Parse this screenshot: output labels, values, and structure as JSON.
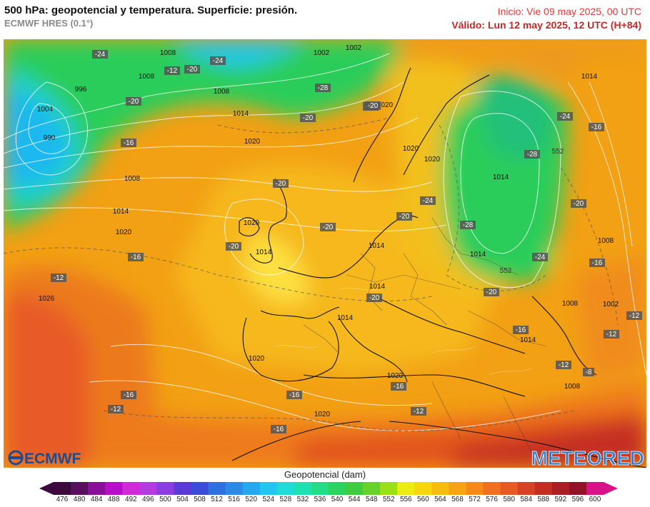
{
  "header": {
    "title": "500 hPa: geopotencial y temperatura. Superficie: presión.",
    "model": "ECMWF HRES (0.1°)",
    "init": "Inicio: Vie 09 may 2025, 00 UTC",
    "valid": "Válido: Lun 12 may 2025, 12 UTC (H+84)"
  },
  "logos": {
    "left": "ECMWF",
    "right": "METEORED"
  },
  "legend": {
    "title": "Geopotencial (dam)",
    "ticks": [
      "476",
      "480",
      "484",
      "488",
      "492",
      "496",
      "500",
      "504",
      "508",
      "512",
      "516",
      "520",
      "524",
      "528",
      "532",
      "536",
      "540",
      "544",
      "548",
      "552",
      "556",
      "560",
      "564",
      "568",
      "572",
      "576",
      "580",
      "584",
      "588",
      "592",
      "596",
      "600"
    ],
    "colors": [
      "#3d0a3d",
      "#5a0f5e",
      "#8a0f99",
      "#b70fc9",
      "#d22ad8",
      "#b43be0",
      "#8a3ee0",
      "#5a3ad8",
      "#3a4cd8",
      "#2f6fe0",
      "#2a8ae6",
      "#24a8ee",
      "#22c6f0",
      "#1fdcd8",
      "#1ee0b0",
      "#22dc88",
      "#2ad460",
      "#40cc40",
      "#66d22a",
      "#9ae018",
      "#ecec12",
      "#f6d60e",
      "#f8bc10",
      "#f7a414",
      "#f58a18",
      "#f07020",
      "#e85a24",
      "#d84224",
      "#c42e22",
      "#aa1e24",
      "#92122a",
      "#d9128a"
    ]
  },
  "map_labels": {
    "pressure": [
      "1008",
      "1002",
      "1008",
      "1002",
      "996",
      "1004",
      "990",
      "1008",
      "1014",
      "1020",
      "1008",
      "1014",
      "1020",
      "1026",
      "1020",
      "1014",
      "1020",
      "1014",
      "1020",
      "1020",
      "1014",
      "1020",
      "1014",
      "1020",
      "1014",
      "1008",
      "1002",
      "1008",
      "1008",
      "1014",
      "1014",
      "1014",
      "1020"
    ],
    "temperature": [
      "-24",
      "-24",
      "-20",
      "-20",
      "-28",
      "-20",
      "-16",
      "-20",
      "-20",
      "-20",
      "-20",
      "-20",
      "-16",
      "-12",
      "-16",
      "-12",
      "-16",
      "-16",
      "-12",
      "-16",
      "-12",
      "-20",
      "-20",
      "-24",
      "-28",
      "-24",
      "-20",
      "-24",
      "-16",
      "-16",
      "-12",
      "-12",
      "-12",
      "-8",
      "-20",
      "-28",
      "-16"
    ],
    "isohypse": [
      "552",
      "552"
    ]
  }
}
